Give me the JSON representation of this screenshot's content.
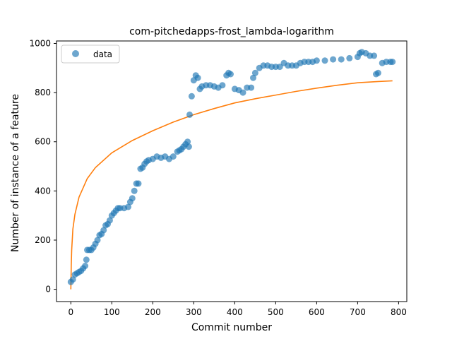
{
  "chart_data": {
    "type": "scatter",
    "title": "com-pitchedapps-frost_lambda-logarithm",
    "xlabel": "Commit number",
    "ylabel": "Number of instance of a feature",
    "xlim": [
      -35,
      820
    ],
    "ylim": [
      -50,
      1010
    ],
    "grid": false,
    "legend": {
      "placement": "top-left",
      "entries": [
        "data"
      ]
    },
    "x_ticks": [
      0,
      100,
      200,
      300,
      400,
      500,
      600,
      700,
      800
    ],
    "y_ticks": [
      0,
      200,
      400,
      600,
      800,
      1000
    ],
    "colors": {
      "data": "#1f77b4",
      "fit": "#ff7f0e",
      "axes": "#000000"
    },
    "series": [
      {
        "name": "data",
        "kind": "scatter",
        "x": [
          0,
          5,
          10,
          15,
          20,
          25,
          30,
          35,
          38,
          40,
          45,
          50,
          55,
          60,
          65,
          70,
          75,
          80,
          85,
          90,
          95,
          100,
          105,
          110,
          115,
          120,
          130,
          140,
          145,
          150,
          155,
          160,
          165,
          170,
          175,
          180,
          185,
          190,
          200,
          210,
          220,
          230,
          240,
          250,
          260,
          265,
          270,
          275,
          280,
          285,
          288,
          290,
          295,
          300,
          305,
          310,
          315,
          320,
          330,
          340,
          350,
          360,
          370,
          380,
          385,
          390,
          400,
          410,
          420,
          430,
          440,
          445,
          450,
          460,
          470,
          480,
          490,
          500,
          510,
          520,
          530,
          540,
          550,
          560,
          570,
          580,
          590,
          600,
          620,
          640,
          660,
          680,
          700,
          705,
          710,
          720,
          730,
          740,
          745,
          750,
          760,
          770,
          780,
          785
        ],
        "y": [
          30,
          40,
          60,
          65,
          70,
          75,
          85,
          95,
          120,
          160,
          160,
          160,
          170,
          185,
          200,
          220,
          225,
          240,
          260,
          265,
          280,
          300,
          310,
          320,
          330,
          330,
          330,
          335,
          355,
          370,
          400,
          430,
          430,
          490,
          495,
          510,
          520,
          525,
          530,
          540,
          535,
          540,
          530,
          540,
          560,
          565,
          570,
          580,
          590,
          600,
          580,
          710,
          785,
          850,
          870,
          860,
          815,
          825,
          830,
          830,
          825,
          820,
          830,
          870,
          880,
          875,
          815,
          810,
          800,
          820,
          820,
          860,
          880,
          900,
          910,
          910,
          905,
          905,
          905,
          920,
          910,
          910,
          910,
          920,
          925,
          925,
          925,
          930,
          930,
          935,
          935,
          940,
          945,
          960,
          965,
          960,
          950,
          950,
          875,
          880,
          920,
          925,
          925,
          925
        ]
      },
      {
        "name": "",
        "kind": "line",
        "model": "logarithmic",
        "x": [
          0,
          1,
          2,
          5,
          10,
          20,
          40,
          60,
          100,
          150,
          200,
          250,
          300,
          350,
          400,
          450,
          500,
          550,
          600,
          650,
          700,
          750,
          785
        ],
        "y": [
          0,
          100,
          160,
          245,
          305,
          375,
          450,
          495,
          555,
          605,
          645,
          680,
          710,
          735,
          758,
          775,
          790,
          805,
          818,
          830,
          840,
          845,
          848
        ]
      }
    ]
  }
}
